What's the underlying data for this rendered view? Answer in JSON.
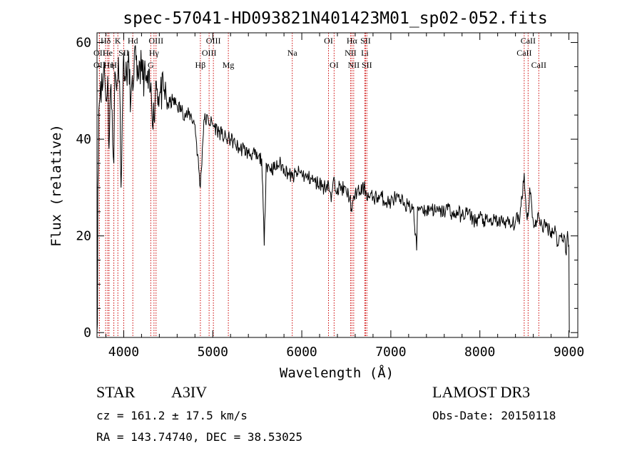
{
  "chart_data": {
    "type": "line",
    "title": "spec-57041-HD093821N401423M01_sp02-052.fits",
    "xlabel": "Wavelength (Å)",
    "ylabel": "Flux (relative)",
    "xlim": [
      3700,
      9100
    ],
    "ylim": [
      -1,
      62
    ],
    "x_ticks": [
      4000,
      5000,
      6000,
      7000,
      8000,
      9000
    ],
    "x_tick_labels": [
      "4000",
      "5000",
      "6000",
      "7000",
      "8000",
      "9000"
    ],
    "y_ticks": [
      0,
      20,
      40,
      60
    ],
    "y_tick_labels": [
      "0",
      "20",
      "40",
      "60"
    ],
    "grid": false,
    "series": [
      {
        "name": "spectrum",
        "x": [
          3700,
          3705,
          3710,
          3720,
          3740,
          3760,
          3780,
          3800,
          3820,
          3835,
          3850,
          3870,
          3889,
          3900,
          3920,
          3940,
          3960,
          3970,
          3990,
          4000,
          4020,
          4050,
          4080,
          4102,
          4120,
          4150,
          4180,
          4200,
          4250,
          4300,
          4340,
          4360,
          4400,
          4450,
          4500,
          4550,
          4600,
          4650,
          4700,
          4750,
          4800,
          4861,
          4900,
          4950,
          5000,
          5050,
          5100,
          5150,
          5200,
          5250,
          5300,
          5350,
          5400,
          5450,
          5500,
          5550,
          5578,
          5600,
          5650,
          5700,
          5750,
          5800,
          5850,
          5890,
          5950,
          6000,
          6050,
          6100,
          6150,
          6200,
          6250,
          6300,
          6330,
          6350,
          6400,
          6450,
          6500,
          6540,
          6563,
          6600,
          6650,
          6700,
          6750,
          6800,
          6850,
          6900,
          6950,
          7000,
          7050,
          7100,
          7150,
          7200,
          7250,
          7290,
          7300,
          7350,
          7400,
          7450,
          7500,
          7550,
          7600,
          7650,
          7700,
          7750,
          7800,
          7850,
          7900,
          7950,
          8000,
          8050,
          8100,
          8150,
          8200,
          8250,
          8300,
          8350,
          8400,
          8450,
          8498,
          8520,
          8542,
          8560,
          8600,
          8620,
          8662,
          8700,
          8750,
          8800,
          8850,
          8880,
          8900,
          8950,
          8970,
          8985,
          9000,
          9005
        ],
        "y": [
          0,
          2,
          30,
          46,
          52,
          50,
          56,
          48,
          53,
          38,
          50,
          46,
          35,
          54,
          50,
          57,
          46,
          30,
          50,
          58,
          52,
          56,
          48,
          50,
          58,
          52,
          56,
          54,
          52,
          50,
          44,
          52,
          49,
          50,
          47,
          48,
          47,
          46,
          45,
          45,
          43,
          30,
          44,
          44,
          43,
          42,
          41,
          40,
          40,
          39,
          38,
          38,
          37,
          37,
          36,
          36,
          18,
          35,
          34,
          34,
          35,
          34,
          33,
          32,
          33,
          33,
          32,
          32,
          31,
          31,
          30,
          31,
          27,
          31,
          30,
          30,
          29,
          28,
          25,
          29,
          29,
          30,
          28,
          28,
          28,
          28,
          27,
          27,
          28,
          27,
          27,
          26,
          26,
          17,
          26,
          26,
          25,
          26,
          25,
          25,
          25,
          26,
          24,
          25,
          24,
          25,
          24,
          23,
          24,
          23,
          23,
          23,
          23,
          23,
          23,
          22,
          23,
          24,
          33,
          25,
          24,
          30,
          23,
          22,
          24,
          22,
          22,
          21,
          21,
          18,
          20,
          20,
          16,
          21,
          18,
          0
        ],
        "noise_amplitude": 1.6
      }
    ],
    "lines": [
      {
        "label": "Hδ",
        "wavelength": 3797,
        "row": 0
      },
      {
        "label": "OII",
        "wavelength": 3727,
        "row": 1
      },
      {
        "label": "OII",
        "wavelength": 3727,
        "row": 2
      },
      {
        "label": "He",
        "wavelength": 3820,
        "row": 1
      },
      {
        "label": "Hη",
        "wavelength": 3835,
        "row": 2
      },
      {
        "label": "H",
        "wavelength": 3889,
        "row": 2
      },
      {
        "label": "K",
        "wavelength": 3934,
        "row": 0
      },
      {
        "label": "SII",
        "wavelength": 4000,
        "row": 1
      },
      {
        "label": "Hd",
        "wavelength": 4102,
        "row": 0
      },
      {
        "label": "OIII",
        "wavelength": 4363,
        "row": 0
      },
      {
        "label": "Hγ",
        "wavelength": 4340,
        "row": 1
      },
      {
        "label": "G",
        "wavelength": 4304,
        "row": 2
      },
      {
        "label": "Hβ",
        "wavelength": 4861,
        "row": 2
      },
      {
        "label": "OIII",
        "wavelength": 5007,
        "row": 0
      },
      {
        "label": "OIII",
        "wavelength": 4959,
        "row": 1
      },
      {
        "label": "Mg",
        "wavelength": 5175,
        "row": 2
      },
      {
        "label": "Na",
        "wavelength": 5893,
        "row": 1
      },
      {
        "label": "OI",
        "wavelength": 6300,
        "row": 0
      },
      {
        "label": "OI",
        "wavelength": 6363,
        "row": 2
      },
      {
        "label": "Hα",
        "wavelength": 6563,
        "row": 0
      },
      {
        "label": "SII",
        "wavelength": 6716,
        "row": 0
      },
      {
        "label": "NII",
        "wavelength": 6548,
        "row": 1
      },
      {
        "label": "Li",
        "wavelength": 6708,
        "row": 1
      },
      {
        "label": "NII",
        "wavelength": 6583,
        "row": 2
      },
      {
        "label": "SII",
        "wavelength": 6731,
        "row": 2
      },
      {
        "label": "CaII",
        "wavelength": 8542,
        "row": 0
      },
      {
        "label": "CaII",
        "wavelength": 8498,
        "row": 1
      },
      {
        "label": "CaII",
        "wavelength": 8662,
        "row": 2
      }
    ]
  },
  "info": {
    "object_class": "STAR",
    "subclass": "A3IV",
    "survey": "LAMOST DR3",
    "redshift": "cz = 161.2 ± 17.5 km/s",
    "obs_date": "Obs-Date: 20150118",
    "coords": "RA = 143.74740, DEC =  38.53025"
  },
  "colors": {
    "spectrum": "#000000",
    "line_marker": "#cc0000",
    "axis": "#000000"
  }
}
